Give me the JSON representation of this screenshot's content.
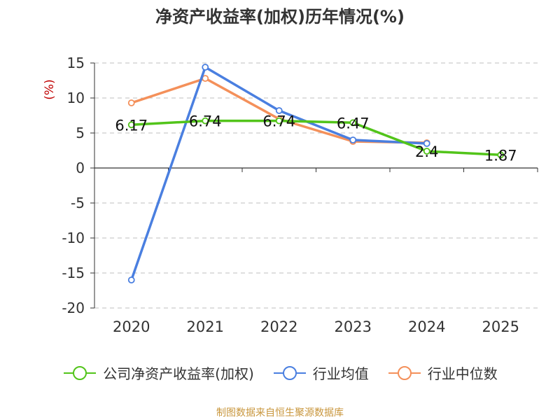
{
  "title": "净资产收益率(加权)历年情况(%)",
  "footer": "制图数据来自恒生聚源数据库",
  "colors": {
    "company": "#52c41a",
    "industry_avg": "#4a7fe0",
    "industry_median": "#f4905a",
    "grid": "#bfbfbf",
    "axis": "#333333",
    "tick_text": "#333333",
    "ylabel": "#c00000"
  },
  "chart_data": {
    "type": "line",
    "title": "净资产收益率(加权)历年情况(%)",
    "xlabel": "",
    "ylabel": "(%)",
    "categories": [
      "2020",
      "2021",
      "2022",
      "2023",
      "2024",
      "2025"
    ],
    "ylim": [
      -20,
      15
    ],
    "yticks": [
      15,
      10,
      5,
      0,
      -5,
      -10,
      -15,
      -20
    ],
    "grid": "horizontal dashed",
    "legend_position": "bottom",
    "series": [
      {
        "key": "company",
        "name": "公司净资产收益率(加权)",
        "values": [
          6.17,
          6.74,
          6.74,
          6.47,
          2.4,
          1.87
        ],
        "labels": [
          "6.17",
          "6.74",
          "6.74",
          "6.47",
          "2.4",
          "1.87"
        ]
      },
      {
        "key": "industry_avg",
        "name": "行业均值",
        "values": [
          -16.0,
          14.4,
          8.2,
          4.0,
          3.5,
          null
        ]
      },
      {
        "key": "industry_median",
        "name": "行业中位数",
        "values": [
          9.3,
          12.8,
          7.0,
          3.8,
          3.6,
          null
        ]
      }
    ]
  }
}
